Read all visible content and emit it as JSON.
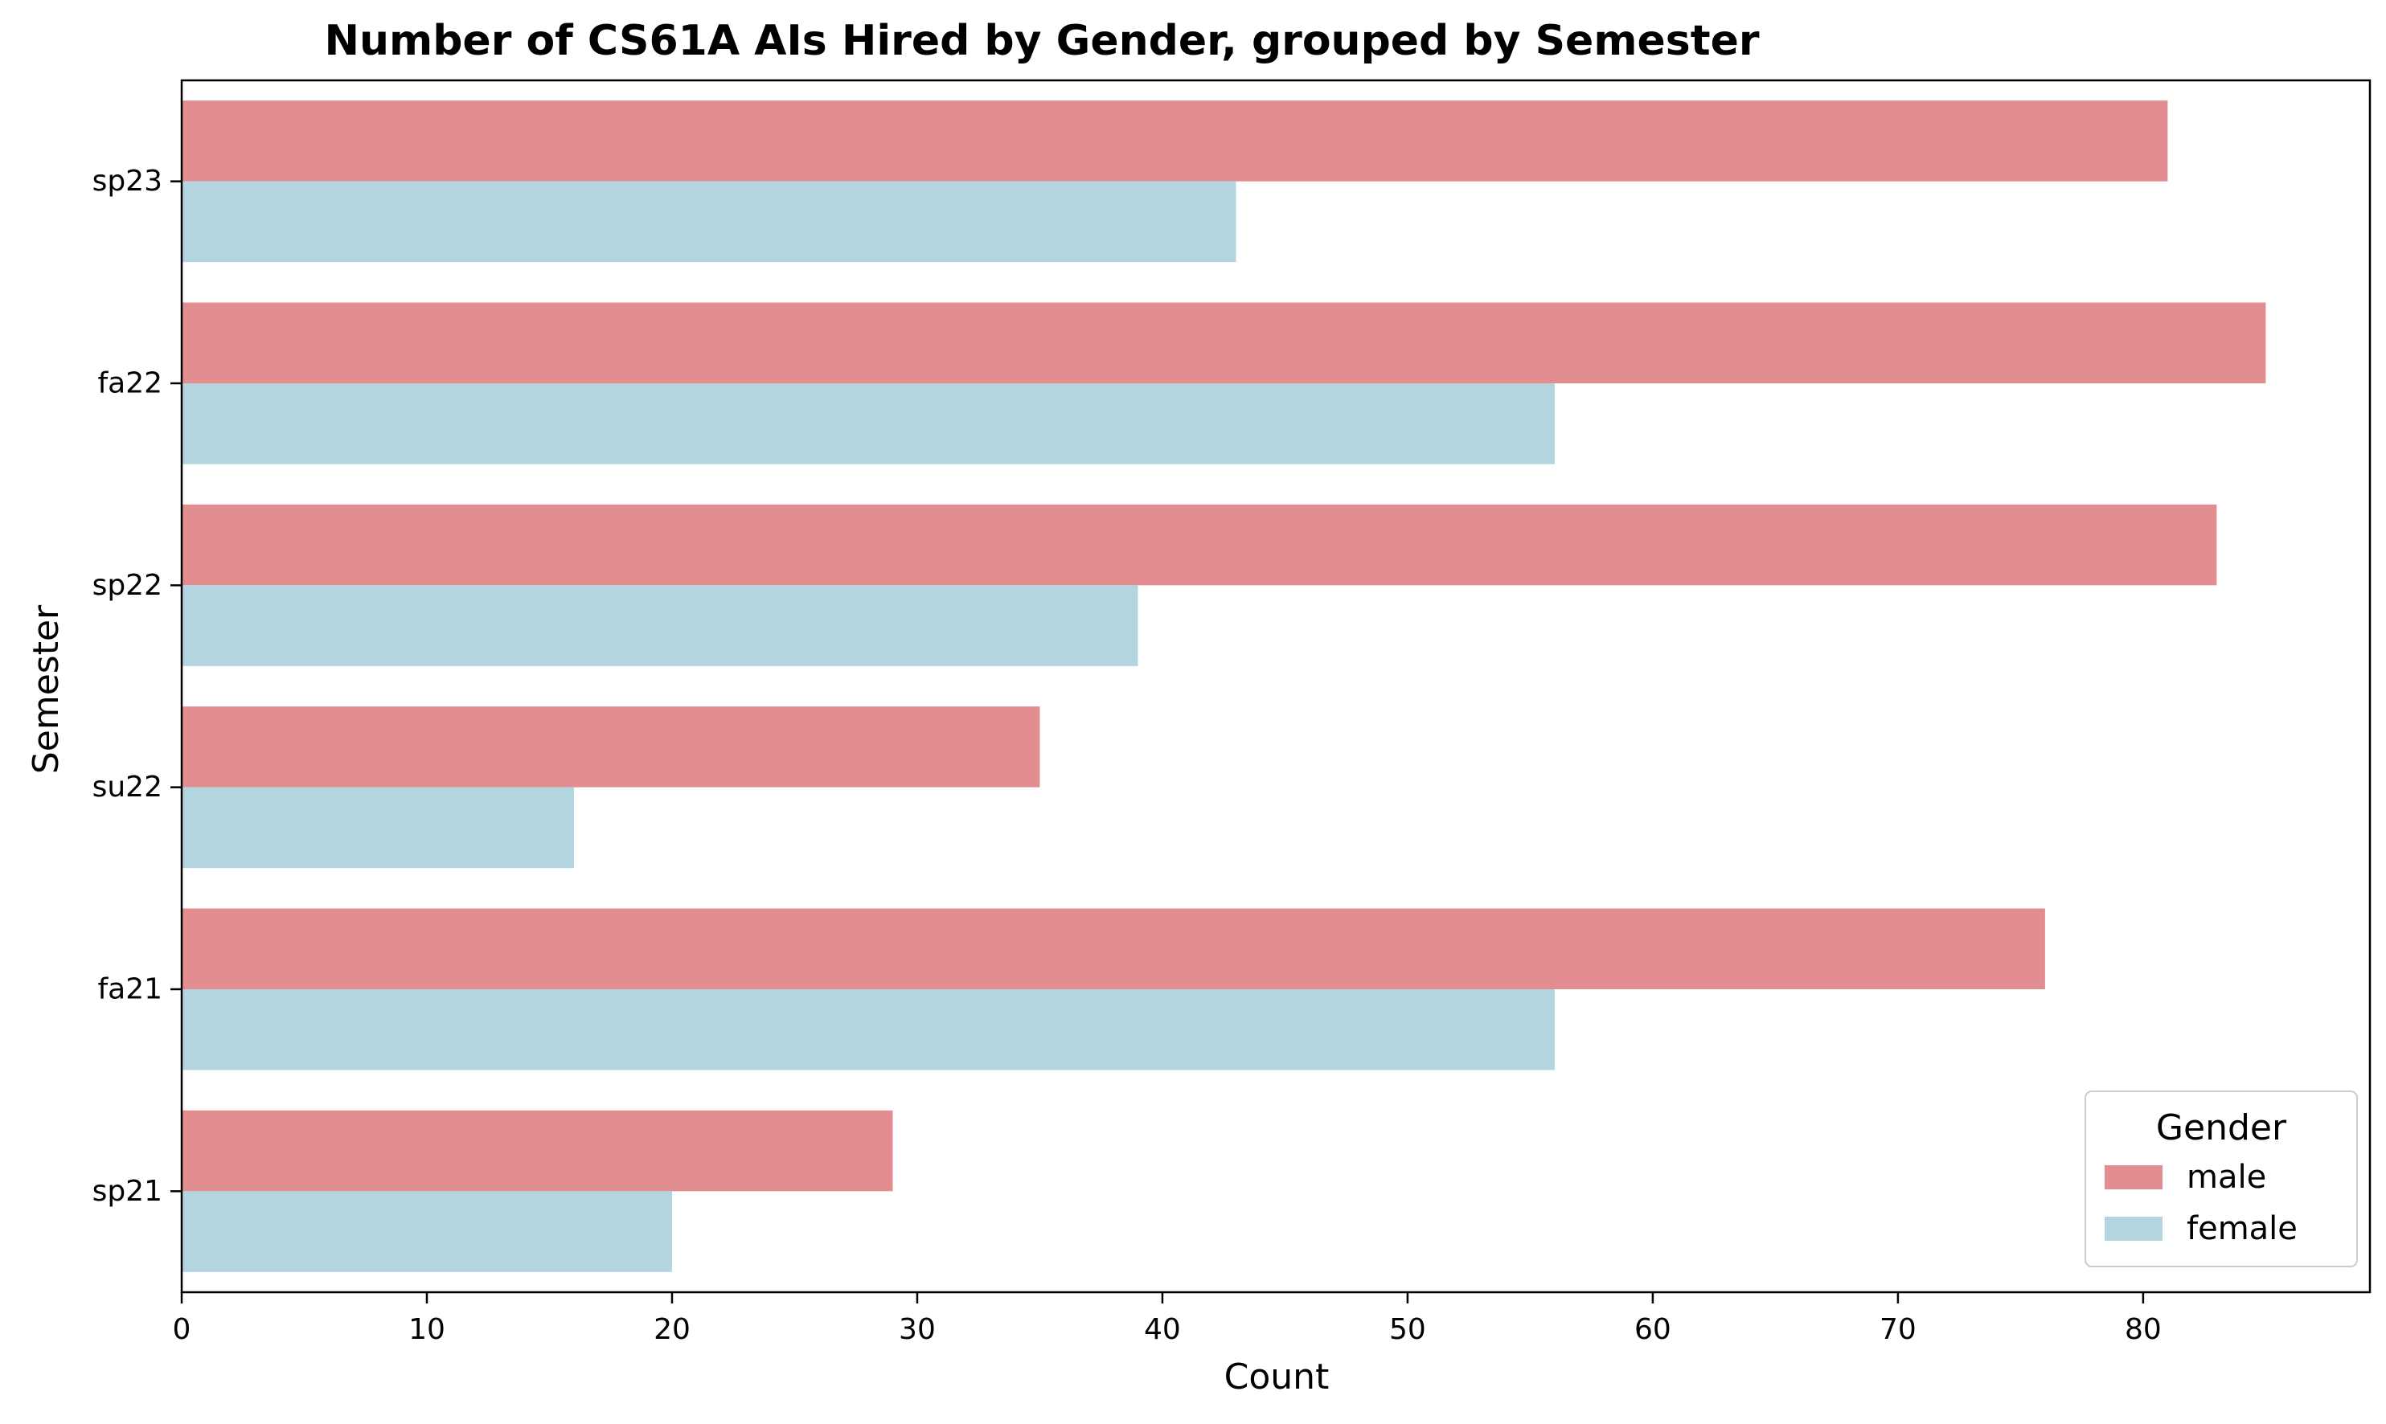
{
  "chart_data": {
    "type": "bar",
    "orientation": "horizontal",
    "title": "Number of CS61A AIs Hired by Gender, grouped by Semester",
    "xlabel": "Count",
    "ylabel": "Semester",
    "categories": [
      "sp23",
      "fa22",
      "sp22",
      "su22",
      "fa21",
      "sp21"
    ],
    "series": [
      {
        "name": "male",
        "color": "#e28d8f",
        "values": [
          81,
          85,
          83,
          35,
          76,
          29
        ]
      },
      {
        "name": "female",
        "color": "#b2d5e0",
        "values": [
          43,
          56,
          39,
          16,
          56,
          20
        ]
      }
    ],
    "xlim": [
      0,
      89.25
    ],
    "xticks": [
      0,
      10,
      20,
      30,
      40,
      50,
      60,
      70,
      80
    ],
    "grid": false,
    "legend": {
      "title": "Gender",
      "position": "lower right",
      "entries": [
        "male",
        "female"
      ]
    }
  }
}
